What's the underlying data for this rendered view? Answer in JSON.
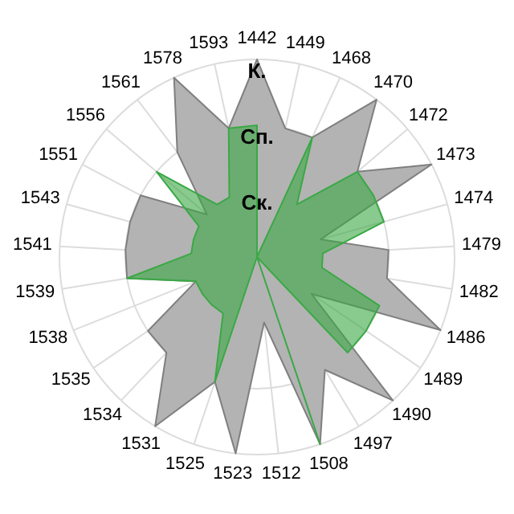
{
  "chart_data": {
    "type": "radar",
    "categories": [
      "1442",
      "1449",
      "1468",
      "1470",
      "1472",
      "1473",
      "1474",
      "1479",
      "1482",
      "1486",
      "1489",
      "1490",
      "1497",
      "1508",
      "1512",
      "1523",
      "1525",
      "1531",
      "1534",
      "1535",
      "1538",
      "1539",
      "1541",
      "1543",
      "1551",
      "1556",
      "1561",
      "1578",
      "1593"
    ],
    "ylim": [
      0,
      3
    ],
    "yticks": [
      {
        "value": 1,
        "label": "Ск."
      },
      {
        "value": 2,
        "label": "Сп."
      },
      {
        "value": 3,
        "label": "К."
      }
    ],
    "grid": true,
    "series": [
      {
        "color": "#b3b3b3",
        "values": [
          3,
          2,
          2,
          3,
          2,
          3,
          1,
          2,
          2,
          3,
          1,
          3,
          2,
          3,
          1,
          3,
          2,
          3,
          2,
          2,
          1,
          2,
          2,
          2,
          2,
          1,
          2,
          3,
          2
        ]
      },
      {
        "color": "#3aa845",
        "values": [
          2,
          0,
          2,
          1,
          2,
          2,
          2,
          1,
          1,
          2,
          2,
          2,
          0,
          3,
          0,
          0,
          2,
          1,
          1,
          1,
          1,
          2,
          1,
          1,
          1,
          2,
          1,
          1,
          2
        ]
      }
    ]
  }
}
